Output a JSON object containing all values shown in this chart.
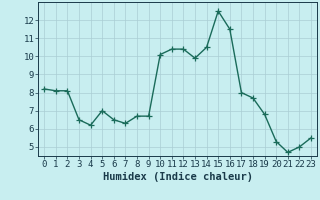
{
  "x": [
    0,
    1,
    2,
    3,
    4,
    5,
    6,
    7,
    8,
    9,
    10,
    11,
    12,
    13,
    14,
    15,
    16,
    17,
    18,
    19,
    20,
    21,
    22,
    23
  ],
  "y": [
    8.2,
    8.1,
    8.1,
    6.5,
    6.2,
    7.0,
    6.5,
    6.3,
    6.7,
    6.7,
    10.1,
    10.4,
    10.4,
    9.9,
    10.5,
    12.5,
    11.5,
    8.0,
    7.7,
    6.8,
    5.3,
    4.7,
    5.0,
    5.5
  ],
  "xlabel": "Humidex (Indice chaleur)",
  "xlim": [
    -0.5,
    23.5
  ],
  "ylim": [
    4.5,
    13.0
  ],
  "yticks": [
    5,
    6,
    7,
    8,
    9,
    10,
    11,
    12
  ],
  "xticks": [
    0,
    1,
    2,
    3,
    4,
    5,
    6,
    7,
    8,
    9,
    10,
    11,
    12,
    13,
    14,
    15,
    16,
    17,
    18,
    19,
    20,
    21,
    22,
    23
  ],
  "line_color": "#1a6b5a",
  "marker": "+",
  "bg_color": "#c8eef0",
  "grid_color": "#aacdd4",
  "text_color": "#1a3a4a",
  "xlabel_fontsize": 7.5,
  "tick_fontsize": 6.5,
  "linewidth": 1.0,
  "markersize": 4.5,
  "markeredgewidth": 0.9
}
